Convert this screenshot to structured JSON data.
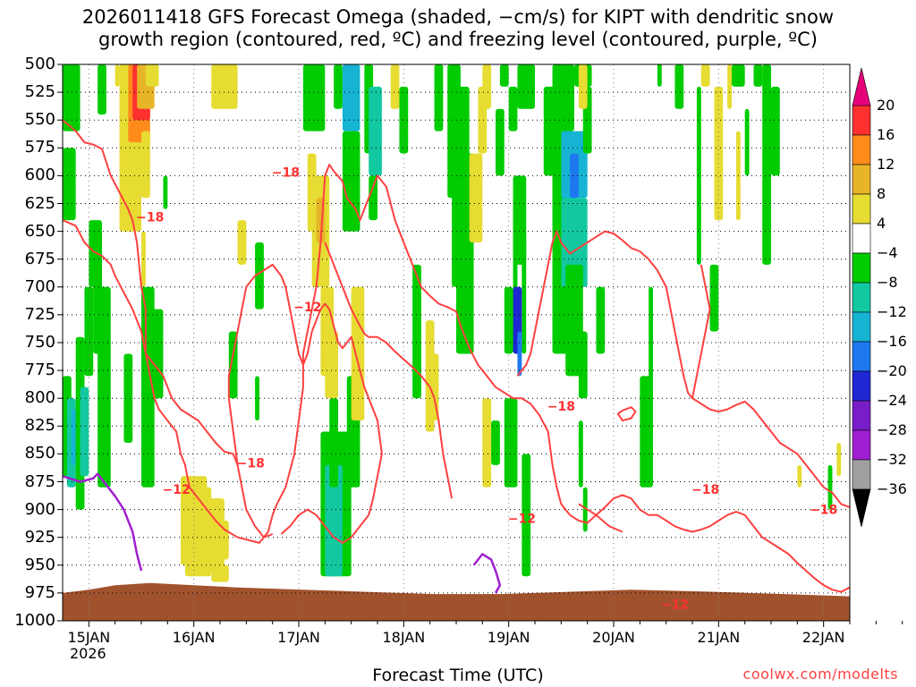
{
  "title": {
    "line1": "2026011418 GFS Forecast Omega (shaded, −cm/s) for KIPT with dendritic snow",
    "line2": "growth region (contoured, red, ºC) and freezing level (contoured, purple, ºC)"
  },
  "xlabel": "Forecast Time (UTC)",
  "credit": "coolwx.com/modelts",
  "x_year_label": "2026",
  "colorbar": {
    "labels": [
      "20",
      "16",
      "12",
      "8",
      "4",
      "−4",
      "−8",
      "−12",
      "−16",
      "−20",
      "−24",
      "−28",
      "−32",
      "−36"
    ],
    "bins": [
      {
        "range": "16 to 20",
        "color": "#ff3030"
      },
      {
        "range": "12 to 16",
        "color": "#ff8c1a"
      },
      {
        "range": "8 to 12",
        "color": "#e8b428"
      },
      {
        "range": "4 to 8",
        "color": "#e6dc32"
      },
      {
        "range": "-4 to 4",
        "color": "#ffffff"
      },
      {
        "range": "-8 to -4",
        "color": "#00cc00"
      },
      {
        "range": "-12 to -8",
        "color": "#12c8a0"
      },
      {
        "range": "-16 to -12",
        "color": "#16b4d2"
      },
      {
        "range": "-20 to -16",
        "color": "#1e78f0"
      },
      {
        "range": "-24 to -20",
        "color": "#1e28d2"
      },
      {
        "range": "-28 to -24",
        "color": "#781ec8"
      },
      {
        "range": "-32 to -28",
        "color": "#a01ed2"
      },
      {
        "range": "-36 to -32",
        "color": "#a0a0a0"
      }
    ],
    "top_arrow_color": "#e6007a",
    "bottom_arrow_color": "#000000"
  },
  "chart_data": {
    "type": "heatmap",
    "title": "2026011418 GFS Forecast Omega (shaded, −cm/s) for KIPT with dendritic snow growth region (contoured, red, ºC) and freezing level (contoured, purple, ºC)",
    "xlabel": "Forecast Time (UTC)",
    "ylabel": "",
    "y_axis": {
      "range_hPa": [
        1000,
        500
      ],
      "inverted": true,
      "tick_labels": [
        "500",
        "525",
        "550",
        "575",
        "600",
        "625",
        "650",
        "675",
        "700",
        "725",
        "750",
        "775",
        "800",
        "825",
        "850",
        "875",
        "900",
        "925",
        "950",
        "975",
        "1000"
      ]
    },
    "x_axis": {
      "start": "2026-01-14T18Z",
      "end": "2026-01-22T06Z",
      "tick_labels": [
        "15JAN",
        "16JAN",
        "17JAN",
        "18JAN",
        "19JAN",
        "20JAN",
        "21JAN",
        "22JAN"
      ]
    },
    "grid": true,
    "ground_color": "#a0522d",
    "contour_labels": [
      {
        "text": "−18",
        "time": "2026-01-15T14Z",
        "p": 637
      },
      {
        "text": "−18",
        "time": "2026-01-16T13Z",
        "p": 858
      },
      {
        "text": "−12",
        "time": "2026-01-15T20Z",
        "p": 882
      },
      {
        "text": "−18",
        "time": "2026-01-16T21Z",
        "p": 597
      },
      {
        "text": "−12",
        "time": "2026-01-17T02Z",
        "p": 718
      },
      {
        "text": "−18",
        "time": "2026-01-19T12Z",
        "p": 807
      },
      {
        "text": "−12",
        "time": "2026-01-19T03Z",
        "p": 908
      },
      {
        "text": "−12",
        "time": "2026-01-20T14Z",
        "p": 985
      },
      {
        "text": "−18",
        "time": "2026-01-20T21Z",
        "p": 882
      },
      {
        "text": "−18",
        "time": "2026-01-22T00Z",
        "p": 900
      }
    ],
    "red_contours_note": "dendritic growth zone isotherms (-12C and -18C)",
    "purple_contours_note": "freezing level (0C)"
  }
}
